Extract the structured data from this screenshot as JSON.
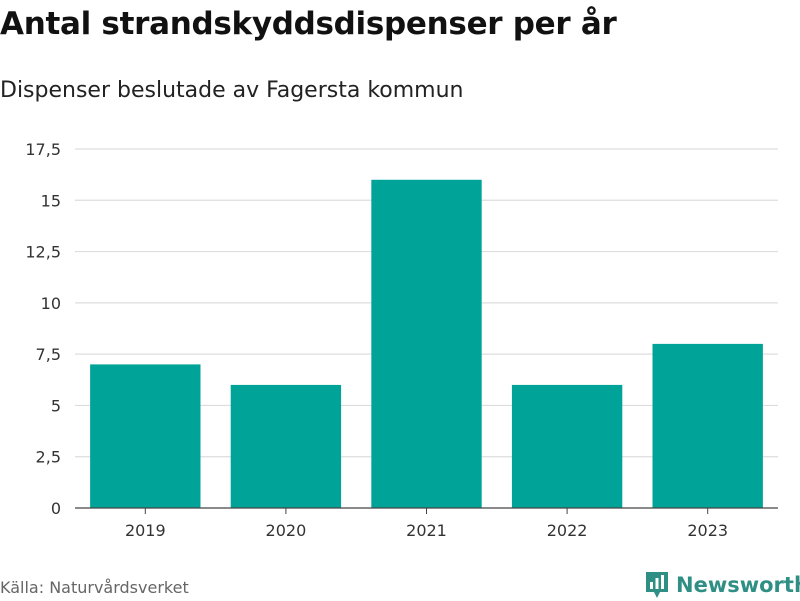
{
  "chart_data": {
    "type": "bar",
    "title": "Antal strandskyddsdispenser per år",
    "subtitle": "Dispenser beslutade av Fagersta kommun",
    "categories": [
      "2019",
      "2020",
      "2021",
      "2022",
      "2023"
    ],
    "values": [
      7,
      6,
      16,
      6,
      8
    ],
    "ylim": [
      0,
      17.5
    ],
    "yticks": [
      0,
      2.5,
      5,
      7.5,
      10,
      12.5,
      15,
      17.5
    ],
    "ytick_labels": [
      "0",
      "2,5",
      "5",
      "7,5",
      "10",
      "12,5",
      "15",
      "17,5"
    ],
    "xlabel": "",
    "ylabel": "",
    "grid": true,
    "bar_color": "#00a398",
    "grid_color": "#dddddd"
  },
  "footer": {
    "source": "Källa: Naturvårdsverket",
    "brand": "Newsworthy",
    "brand_color": "#2f8f84",
    "brand_icon": "newsworthy-logo-icon"
  }
}
